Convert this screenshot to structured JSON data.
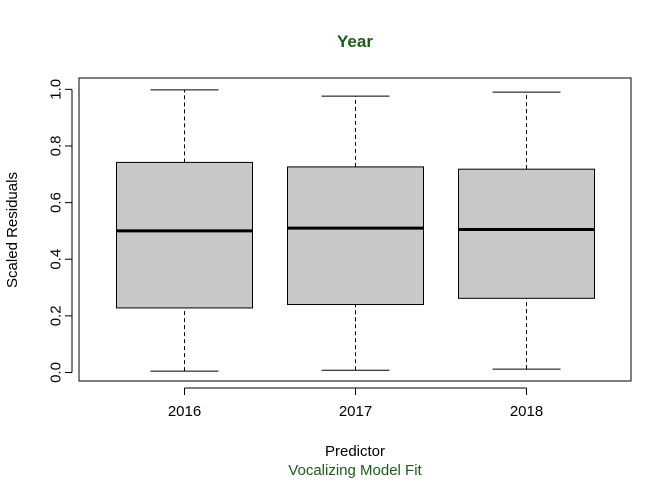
{
  "chart_data": {
    "type": "boxplot",
    "title": "Year",
    "subtitle": "Vocalizing Model Fit",
    "xlabel": "Predictor",
    "ylabel": "Scaled Residuals",
    "categories": [
      "2016",
      "2017",
      "2018"
    ],
    "boxes": [
      {
        "category": "2016",
        "min": 0.005,
        "q1": 0.228,
        "median": 0.5,
        "q3": 0.742,
        "max": 0.998
      },
      {
        "category": "2017",
        "min": 0.008,
        "q1": 0.24,
        "median": 0.51,
        "q3": 0.726,
        "max": 0.976
      },
      {
        "category": "2018",
        "min": 0.012,
        "q1": 0.262,
        "median": 0.505,
        "q3": 0.718,
        "max": 0.99
      }
    ],
    "yticks": [
      "0.0",
      "0.2",
      "0.4",
      "0.6",
      "0.8",
      "1.0"
    ],
    "ylim": [
      -0.03,
      1.04
    ],
    "grid": false,
    "legend": "none",
    "colors": {
      "box_fill": "#c8c8c8",
      "title": "#1a5c1a",
      "subtitle": "#1a5c1a",
      "axis": "#000000"
    }
  }
}
